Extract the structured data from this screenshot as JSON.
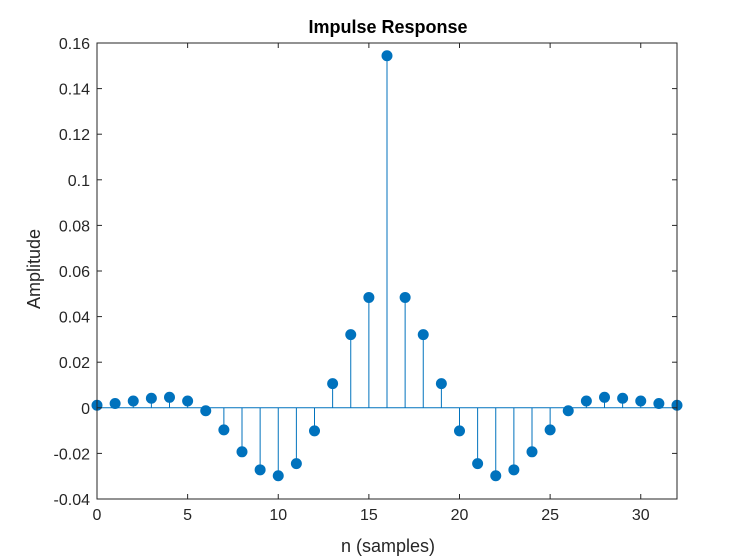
{
  "chart_data": {
    "type": "stem",
    "title": "Impulse Response",
    "xlabel": "n (samples)",
    "ylabel": "Amplitude",
    "xlim": [
      0,
      32
    ],
    "ylim": [
      -0.04,
      0.16
    ],
    "xticks": [
      0,
      5,
      10,
      15,
      20,
      25,
      30
    ],
    "xtick_labels": [
      "0",
      "5",
      "10",
      "15",
      "20",
      "25",
      "30"
    ],
    "yticks": [
      -0.04,
      -0.02,
      0,
      0.02,
      0.04,
      0.06,
      0.08,
      0.1,
      0.12,
      0.14,
      0.16
    ],
    "ytick_labels": [
      "-0.04",
      "-0.02",
      "0",
      "0.02",
      "0.04",
      "0.06",
      "0.08",
      "0.1",
      "0.12",
      "0.14",
      "0.16"
    ],
    "grid": false,
    "series": [
      {
        "color": "#0072BD",
        "x": [
          0,
          1,
          2,
          3,
          4,
          5,
          6,
          7,
          8,
          9,
          10,
          11,
          12,
          13,
          14,
          15,
          16,
          17,
          18,
          19,
          20,
          21,
          22,
          23,
          24,
          25,
          26,
          27,
          28,
          29,
          30,
          31,
          32
        ],
        "y": [
          0.0011,
          0.0019,
          0.003,
          0.0042,
          0.0046,
          0.003,
          -0.0013,
          -0.0097,
          -0.0193,
          -0.0272,
          -0.0298,
          -0.0245,
          -0.0101,
          0.0106,
          0.0321,
          0.0484,
          0.1544,
          0.0484,
          0.0321,
          0.0106,
          -0.0101,
          -0.0245,
          -0.0298,
          -0.0272,
          -0.0193,
          -0.0097,
          -0.0013,
          0.003,
          0.0046,
          0.0042,
          0.003,
          0.0019,
          0.0011
        ]
      }
    ]
  }
}
